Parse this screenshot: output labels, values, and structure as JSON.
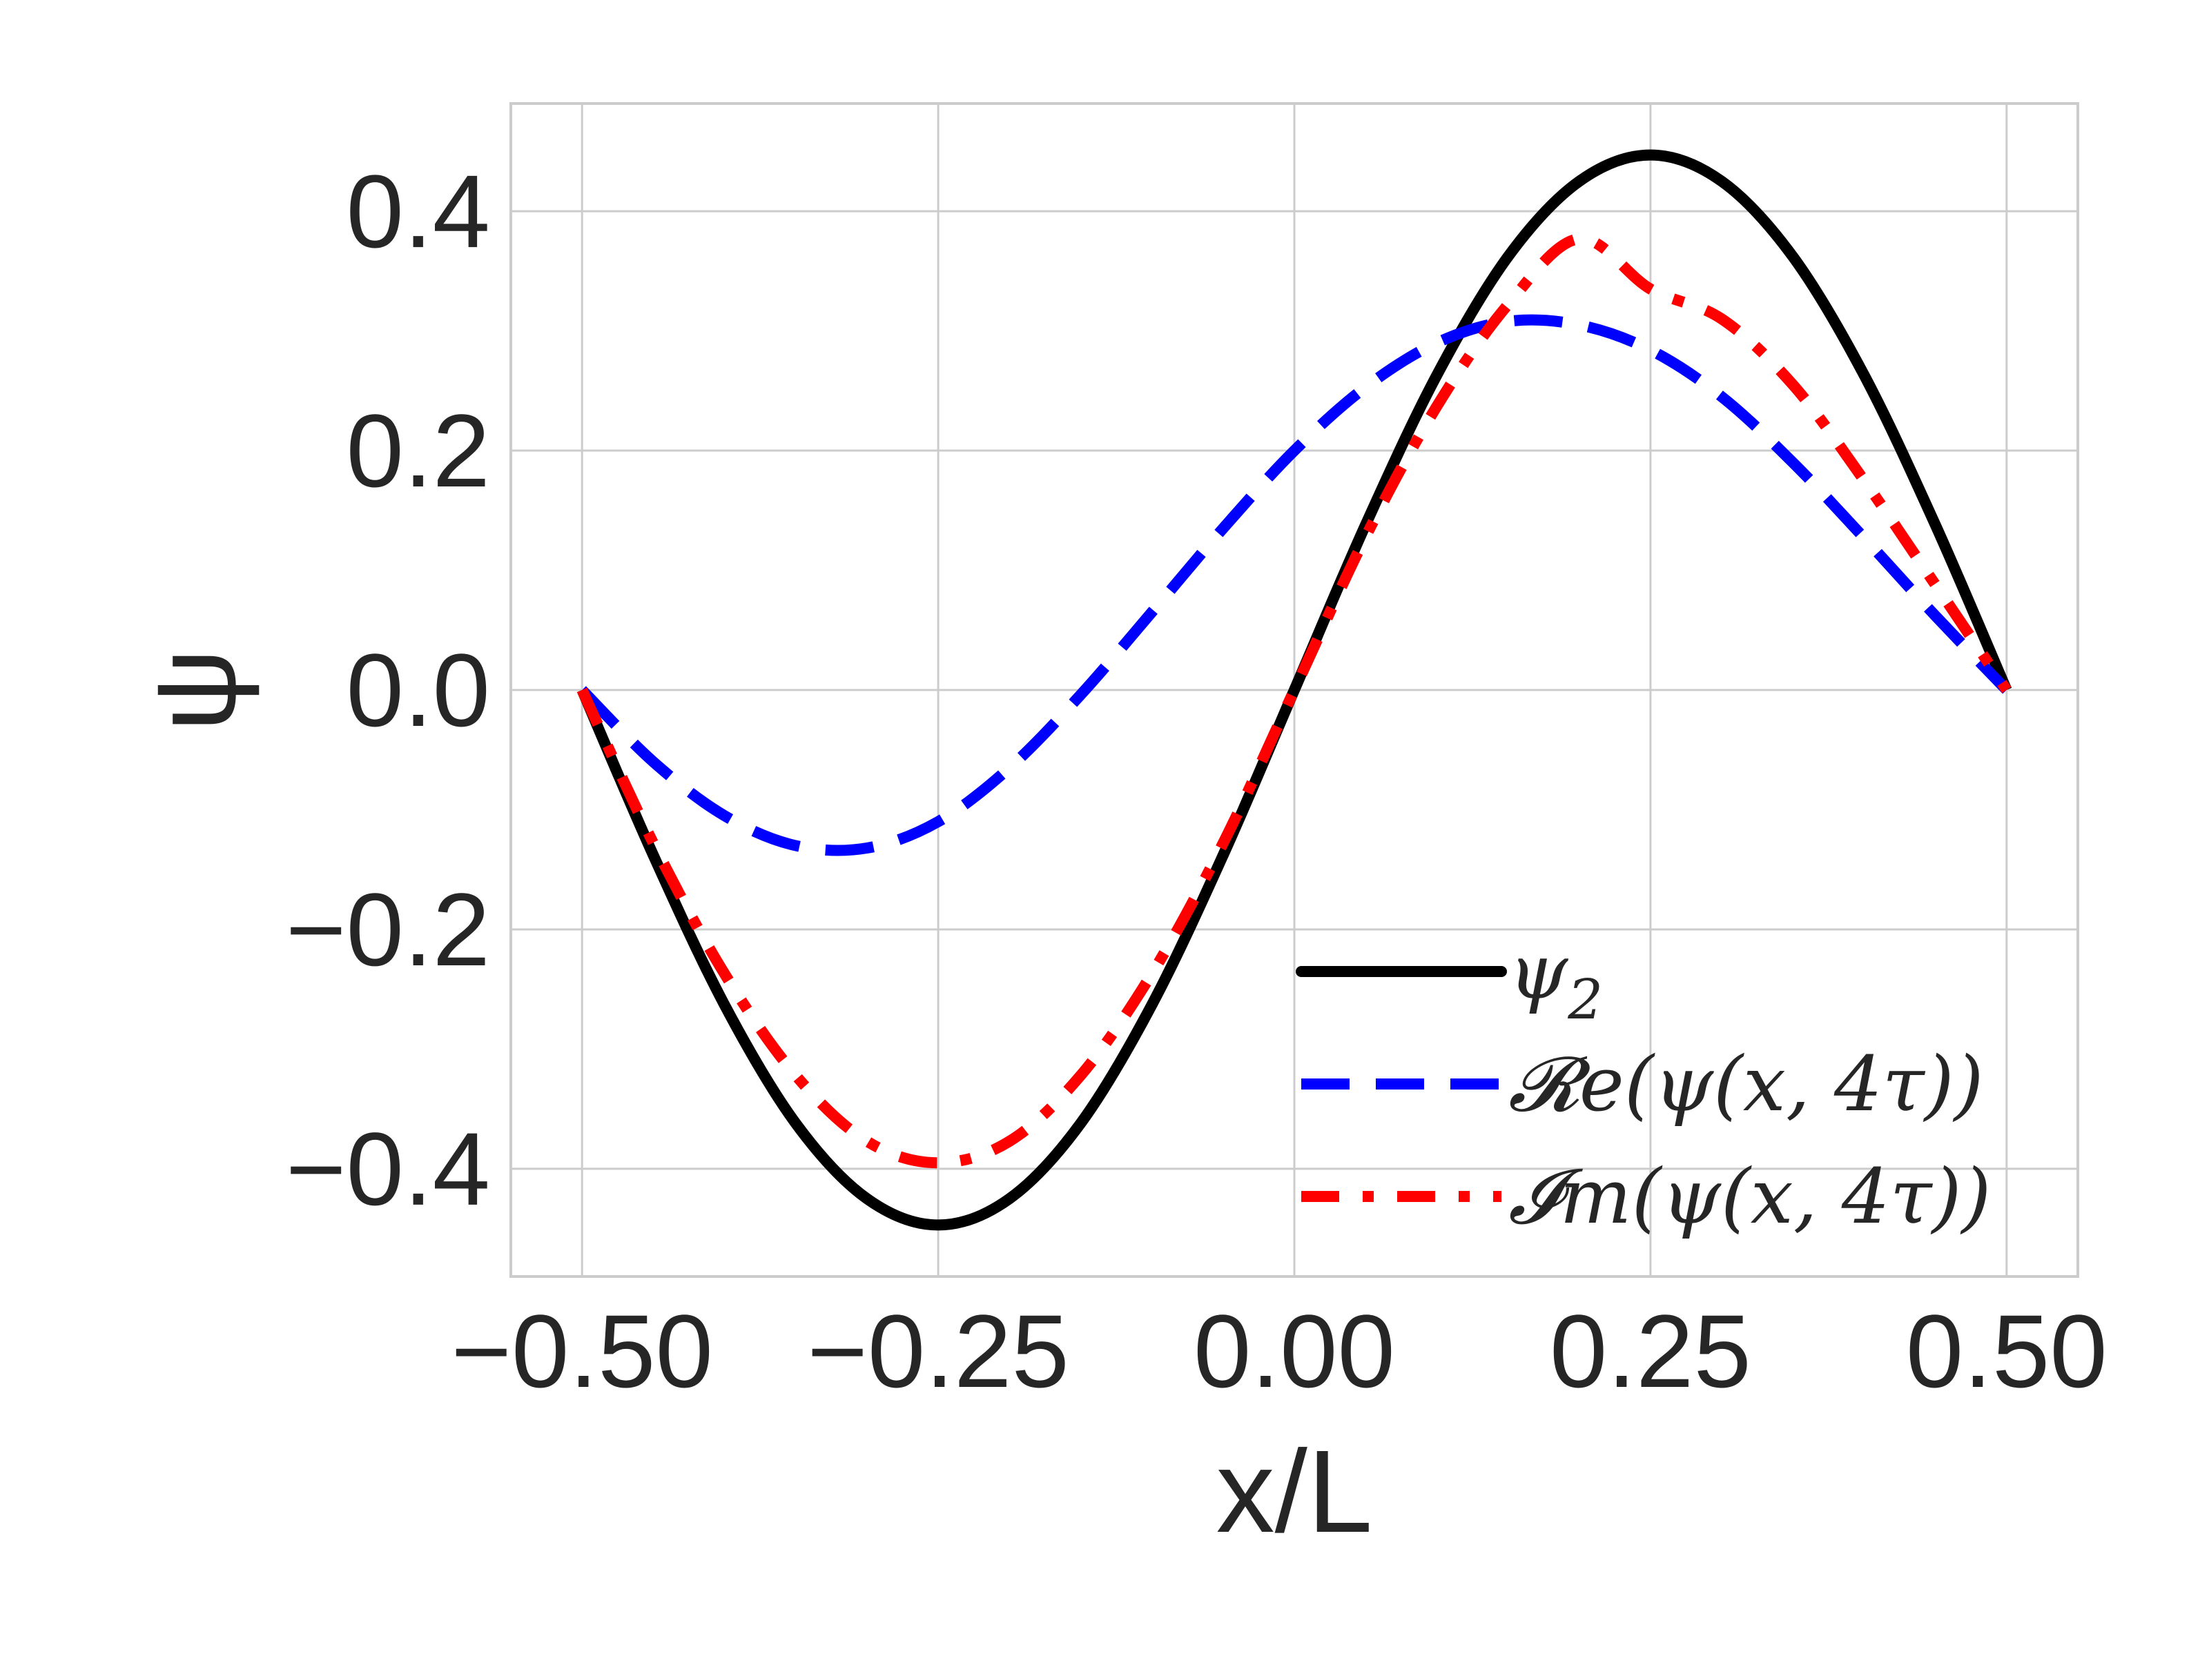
{
  "chart_data": {
    "type": "line",
    "xlabel": "x/L",
    "ylabel": "ψ",
    "xlim": [
      -0.55,
      0.55
    ],
    "ylim": [
      -0.49,
      0.49
    ],
    "xticks": [
      -0.5,
      -0.25,
      0.0,
      0.25,
      0.5
    ],
    "xtick_labels": [
      "−0.50",
      "−0.25",
      "0.00",
      "0.25",
      "0.50"
    ],
    "yticks": [
      -0.4,
      -0.2,
      0.0,
      0.2,
      0.4
    ],
    "ytick_labels": [
      "−0.4",
      "−0.2",
      "0.0",
      "0.2",
      "0.4"
    ],
    "grid": true,
    "legend_position": "lower-right",
    "x": [
      -0.5,
      -0.45,
      -0.4,
      -0.35,
      -0.3,
      -0.25,
      -0.2,
      -0.15,
      -0.1,
      -0.05,
      0.0,
      0.05,
      0.1,
      0.15,
      0.2,
      0.25,
      0.3,
      0.35,
      0.4,
      0.45,
      0.5
    ],
    "series": [
      {
        "name": "ψ2",
        "label_main": "ψ",
        "label_sub": "2",
        "color": "#000000",
        "dash": "solid",
        "values": [
          0.0,
          -0.138,
          -0.263,
          -0.362,
          -0.425,
          -0.447,
          -0.425,
          -0.362,
          -0.263,
          -0.138,
          0.0,
          0.138,
          0.263,
          0.362,
          0.425,
          0.447,
          0.425,
          0.362,
          0.263,
          0.138,
          0.0
        ]
      },
      {
        "name": "𝓡e(ψ(x, 4τ))",
        "color": "#0000ff",
        "dash": "dashed",
        "values": [
          0.0,
          -0.06,
          -0.105,
          -0.13,
          -0.132,
          -0.11,
          -0.065,
          -0.004,
          0.065,
          0.135,
          0.2,
          0.253,
          0.29,
          0.308,
          0.305,
          0.284,
          0.245,
          0.19,
          0.127,
          0.062,
          0.0
        ]
      },
      {
        "name": "𝓘m(ψ(x, 4τ))",
        "color": "#ff0000",
        "dash": "dashdot",
        "values": [
          0.0,
          -0.128,
          -0.237,
          -0.322,
          -0.377,
          -0.395,
          -0.377,
          -0.322,
          -0.237,
          -0.128,
          0.0,
          0.128,
          0.237,
          0.322,
          0.377,
          0.335,
          0.31,
          0.255,
          0.175,
          0.088,
          0.0
        ]
      }
    ]
  }
}
